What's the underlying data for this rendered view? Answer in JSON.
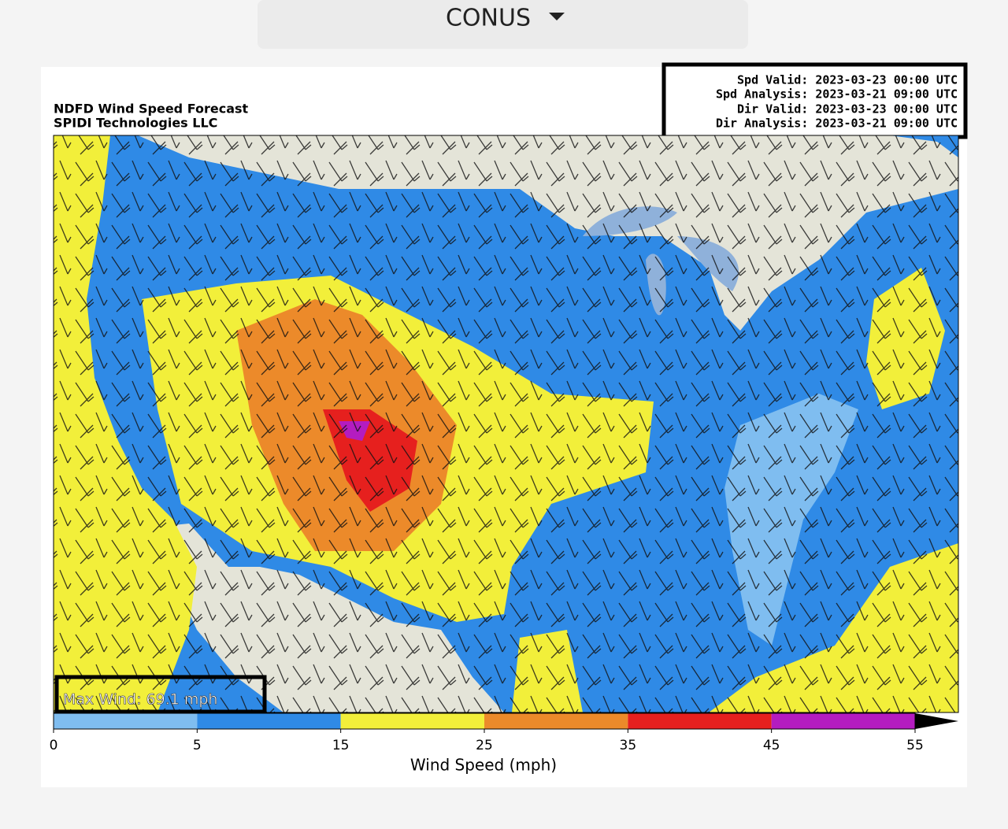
{
  "selector": {
    "label": "CONUS"
  },
  "figure": {
    "title": [
      "NDFD Wind Speed Forecast",
      "SPIDI Technologies LLC"
    ],
    "validity": [
      "Spd Valid: 2023-03-23 00:00 UTC",
      "Spd Analysis: 2023-03-21 09:00 UTC",
      "Dir Valid: 2023-03-23 00:00 UTC",
      "Dir Analysis: 2023-03-21 09:00 UTC"
    ],
    "max_wind": "Max Wind: 69.1 mph"
  },
  "colorbar": {
    "label": "Wind Speed (mph)",
    "bounds": [
      0,
      5,
      15,
      25,
      35,
      45,
      55
    ],
    "colors": [
      "#7fbdf0",
      "#2f8ae6",
      "#f2ef3a",
      "#ec8a2a",
      "#e6201e",
      "#b41cc0"
    ],
    "extend_color": "#000000"
  }
}
